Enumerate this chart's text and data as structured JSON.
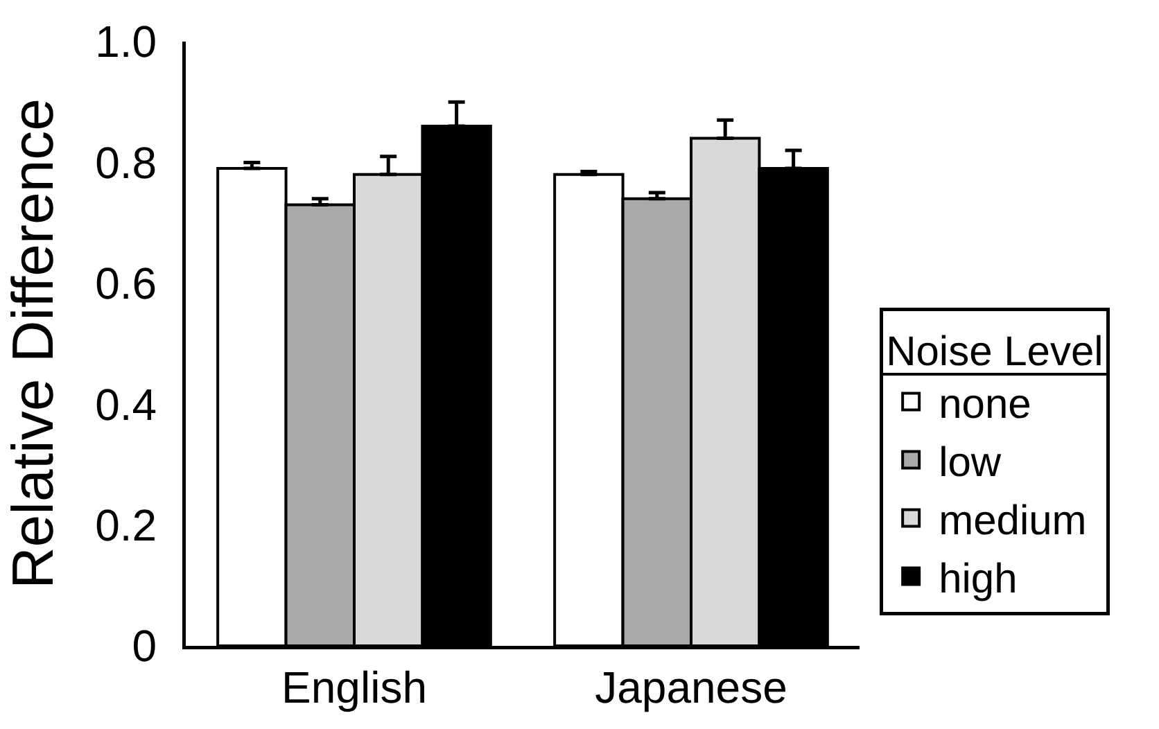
{
  "chart_data": {
    "type": "bar",
    "ylabel": "Relative Difference",
    "legend_title": "Noise Level",
    "legend": "bottom right",
    "categories": [
      "English",
      "Japanese"
    ],
    "series": [
      {
        "name": "none",
        "color": "#ffffff",
        "values": [
          0.79,
          0.78
        ],
        "errors": [
          [
            0.79,
            0.8
          ],
          [
            0.78,
            0.785
          ]
        ]
      },
      {
        "name": "low",
        "color": "#a9a9a9",
        "values": [
          0.73,
          0.74
        ],
        "errors": [
          [
            0.73,
            0.74
          ],
          [
            0.74,
            0.75
          ]
        ]
      },
      {
        "name": "medium",
        "color": "#d9d9d9",
        "values": [
          0.78,
          0.84
        ],
        "errors": [
          [
            0.78,
            0.81
          ],
          [
            0.84,
            0.87
          ]
        ]
      },
      {
        "name": "high",
        "color": "#000000",
        "values": [
          0.86,
          0.79
        ],
        "errors": [
          [
            0.86,
            0.9
          ],
          [
            0.79,
            0.82
          ]
        ]
      }
    ],
    "ylim": [
      0,
      1
    ],
    "yticks": [
      0,
      0.2,
      0.4,
      0.6,
      0.8,
      {
        "value": 1,
        "label": "1.0"
      }
    ]
  }
}
